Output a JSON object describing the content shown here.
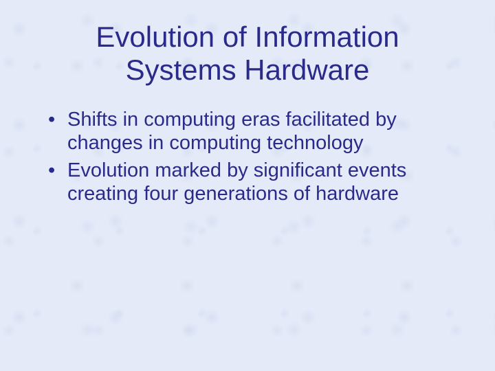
{
  "slide": {
    "title": "Evolution of Information Systems Hardware",
    "bullets": [
      "Shifts in computing eras facilitated by changes in computing technology",
      "Evolution marked by significant events creating four generations of hardware"
    ],
    "colors": {
      "background": "#e4eaf8",
      "text": "#2a2a8a",
      "pattern": "rgba(200,210,235,0.4)"
    },
    "typography": {
      "title_fontsize": 42,
      "bullet_fontsize": 29,
      "font_family": "Arial"
    }
  }
}
